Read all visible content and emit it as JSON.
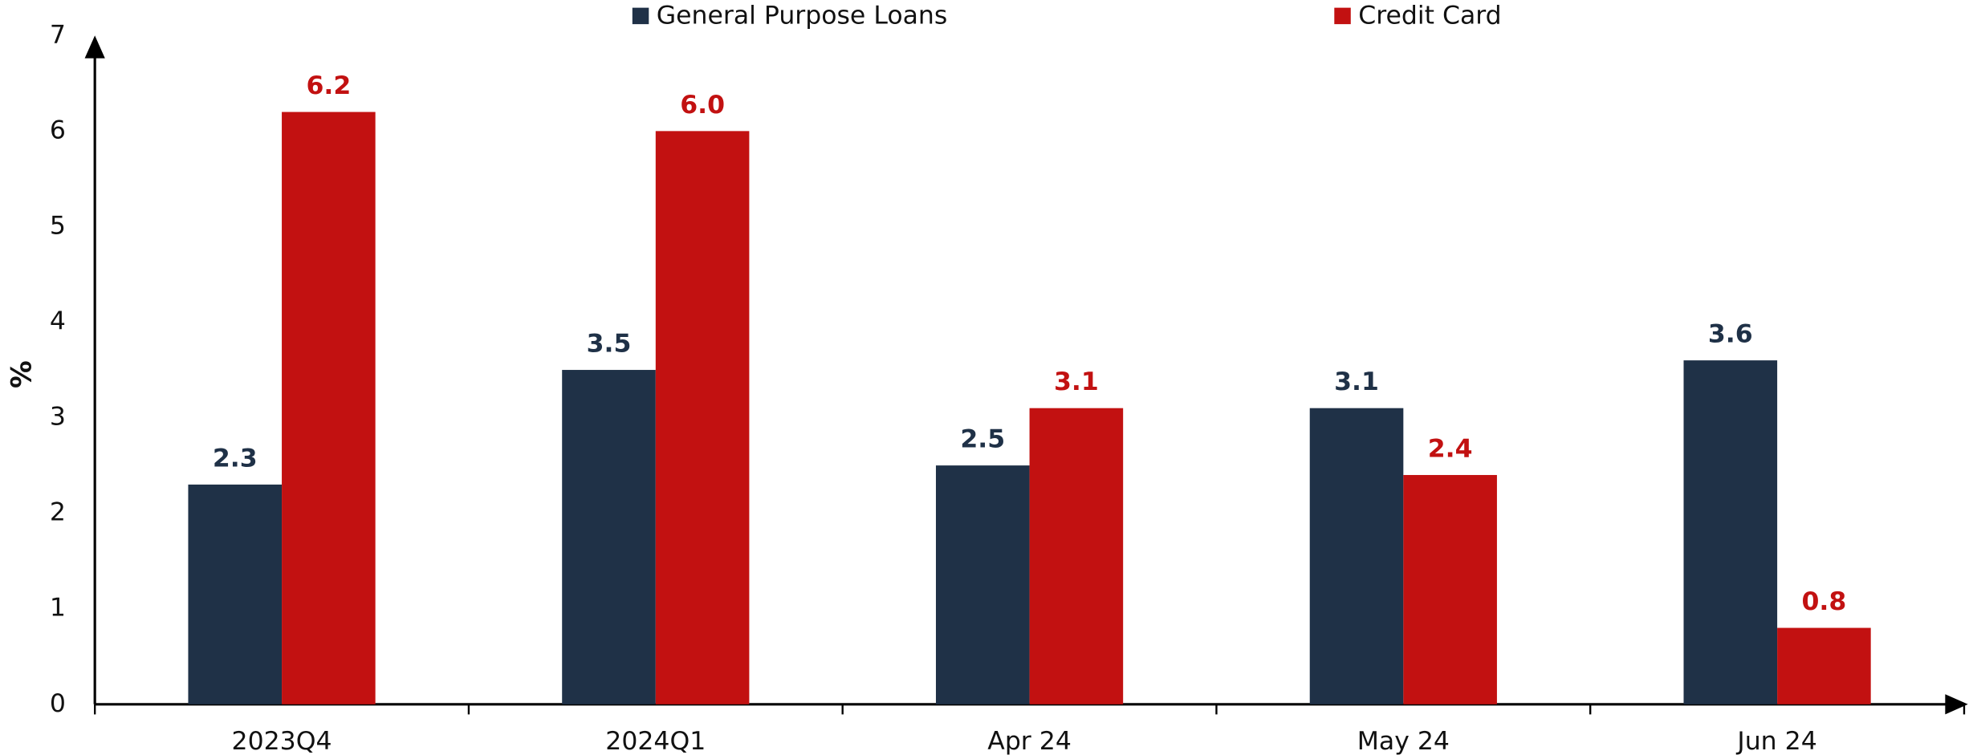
{
  "chart_data": {
    "type": "bar",
    "y_label": "%",
    "categories": [
      "2023Q4",
      "2024Q1",
      "Apr 24",
      "May 24",
      "Jun 24"
    ],
    "series": [
      {
        "name": "General Purpose Loans",
        "color": "#1f3147",
        "values": [
          2.3,
          3.5,
          2.5,
          3.1,
          3.6
        ],
        "value_labels": [
          "2.3",
          "3.5",
          "2.5",
          "3.1",
          "3.6"
        ]
      },
      {
        "name": "Credit Card",
        "color": "#c21111",
        "values": [
          6.2,
          6.0,
          3.1,
          2.4,
          0.8
        ],
        "value_labels": [
          "6.2",
          "6.0",
          "3.1",
          "2.4",
          "0.8"
        ]
      }
    ],
    "ylim": [
      0,
      7
    ],
    "yticks": [
      0,
      1,
      2,
      3,
      4,
      5,
      6,
      7
    ],
    "grid": false,
    "legend": "top"
  }
}
